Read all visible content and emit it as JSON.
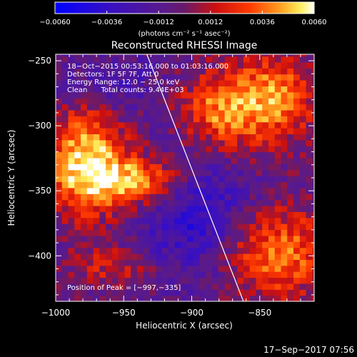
{
  "chart_data": {
    "type": "heatmap",
    "title": "Reconstructed RHESSI Image",
    "xlabel": "Heliocentric X (arcsec)",
    "ylabel": "Heliocentric Y (arcsec)",
    "xlim": [
      -1000,
      -810
    ],
    "ylim": [
      -435,
      -245
    ],
    "x_ticks": [
      -1000,
      -950,
      -900,
      -850
    ],
    "x_tick_labels": [
      "−1000",
      "−950",
      "−900",
      "−850"
    ],
    "y_ticks": [
      -250,
      -300,
      -350,
      -400
    ],
    "y_tick_labels": [
      "−250",
      "−300",
      "−350",
      "−400"
    ],
    "colorbar": {
      "range": [
        -0.006,
        0.006
      ],
      "ticks": [
        -0.006,
        -0.0036,
        -0.0012,
        0.0012,
        0.0036,
        0.006
      ],
      "tick_labels": [
        "−0.0060",
        "−0.0036",
        "−0.0012",
        "0.0012",
        "0.0036",
        "0.0060"
      ],
      "unit_label": "(photons cm⁻² s⁻¹ asec⁻²)",
      "colormap": "blue-purple-red-orange-yellow-white"
    },
    "annotations": [
      "18−Oct−2015 00:53:16.000 to 01:03:16.000",
      "Detectors: 1F 5F 7F, Att 0",
      "Energy Range: 12.0 − 25.0 keV",
      "Clean      Total counts: 9.44E+03"
    ],
    "peak_label": "Position of Peak = [−997,−335]",
    "peak_position": [
      -997,
      -335
    ],
    "limb_line": [
      [
        -933,
        -245
      ],
      [
        -862,
        -435
      ]
    ]
  },
  "footer": {
    "timestamp": "17−Sep−2017 07:56"
  }
}
